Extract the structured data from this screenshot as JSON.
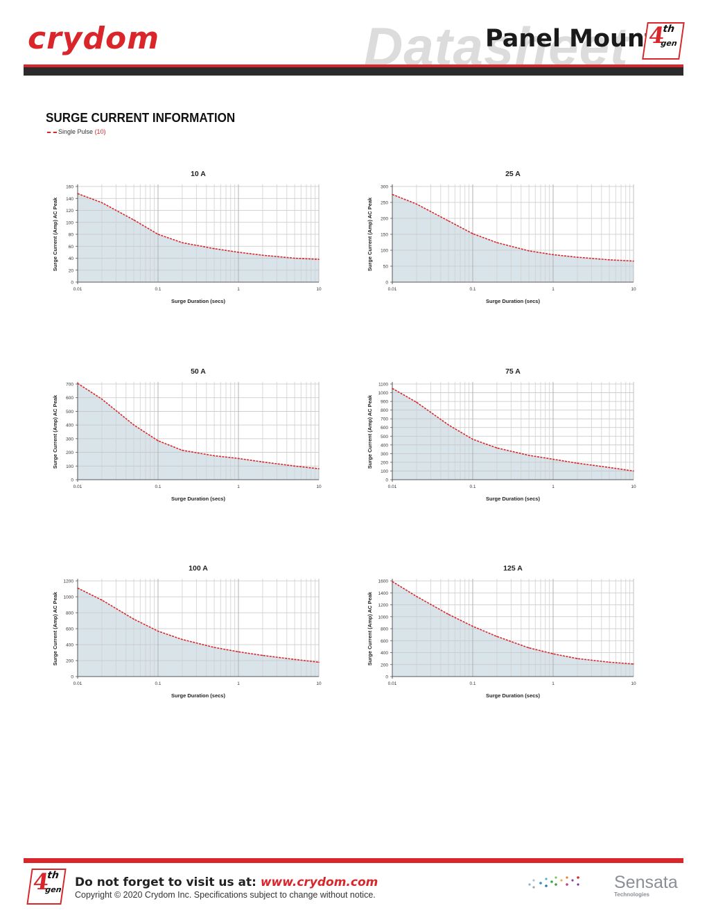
{
  "header": {
    "logo_text": "crydom",
    "watermark_text": "Datasheet",
    "product_title": "Panel Mount",
    "badge_digit": "4",
    "badge_th": "th",
    "badge_gen": "gen",
    "colors": {
      "brand_red": "#d8262b",
      "dark_bar": "#2b2b2b",
      "watermark": "#dcdcdc"
    }
  },
  "section": {
    "title": "SURGE CURRENT INFORMATION",
    "legend_label": "Single Pulse",
    "legend_note": "(10)"
  },
  "chart_data": [
    {
      "type": "area",
      "title": "10 A",
      "xlabel": "Surge Duration (secs)",
      "ylabel": "Surge Current (Amp) AC Peak",
      "xscale": "log",
      "xlim": [
        0.01,
        10
      ],
      "xticks": [
        "0.01",
        "0.1",
        "1",
        "10"
      ],
      "ylim": [
        0,
        160
      ],
      "yticks": [
        0,
        20,
        40,
        60,
        80,
        100,
        120,
        140,
        160
      ],
      "grid": true,
      "series": [
        {
          "name": "Single Pulse",
          "style": "dashed",
          "color": "#d8262b",
          "fill": "#d9e4ea",
          "x": [
            0.01,
            0.02,
            0.05,
            0.1,
            0.2,
            0.5,
            1,
            2,
            5,
            10
          ],
          "y": [
            148,
            133,
            104,
            80,
            66,
            56,
            50,
            45,
            40,
            38
          ]
        }
      ]
    },
    {
      "type": "area",
      "title": "25 A",
      "xlabel": "Surge Duration (secs)",
      "ylabel": "Surge Current (Amp) AC Peak",
      "xscale": "log",
      "xlim": [
        0.01,
        10
      ],
      "xticks": [
        "0.01",
        "0.1",
        "1",
        "10"
      ],
      "ylim": [
        0,
        300
      ],
      "yticks": [
        0,
        50,
        100,
        150,
        200,
        250,
        300
      ],
      "grid": true,
      "series": [
        {
          "name": "Single Pulse",
          "style": "dashed",
          "color": "#d8262b",
          "fill": "#d9e4ea",
          "x": [
            0.01,
            0.02,
            0.05,
            0.1,
            0.2,
            0.5,
            1,
            2,
            5,
            10
          ],
          "y": [
            275,
            245,
            192,
            152,
            124,
            98,
            86,
            78,
            70,
            66
          ]
        }
      ]
    },
    {
      "type": "area",
      "title": "50 A",
      "xlabel": "Surge Duration (secs)",
      "ylabel": "Surge Current (Amp) AC Peak",
      "xscale": "log",
      "xlim": [
        0.01,
        10
      ],
      "xticks": [
        "0.01",
        "0.1",
        "1",
        "10"
      ],
      "ylim": [
        0,
        700
      ],
      "yticks": [
        0,
        100,
        200,
        300,
        400,
        500,
        600,
        700
      ],
      "grid": true,
      "series": [
        {
          "name": "Single Pulse",
          "style": "dashed",
          "color": "#d8262b",
          "fill": "#d9e4ea",
          "x": [
            0.01,
            0.02,
            0.05,
            0.1,
            0.2,
            0.5,
            1,
            2,
            5,
            10
          ],
          "y": [
            705,
            590,
            400,
            285,
            215,
            175,
            155,
            130,
            100,
            80
          ]
        }
      ]
    },
    {
      "type": "area",
      "title": "75 A",
      "xlabel": "Surge Duration (secs)",
      "ylabel": "Surge Current (Amp) AC Peak",
      "xscale": "log",
      "xlim": [
        0.01,
        10
      ],
      "xticks": [
        "0.01",
        "0.1",
        "1",
        "10"
      ],
      "ylim": [
        0,
        1100
      ],
      "yticks": [
        0,
        100,
        200,
        300,
        400,
        500,
        600,
        700,
        800,
        900,
        1000,
        1100
      ],
      "grid": true,
      "series": [
        {
          "name": "Single Pulse",
          "style": "dashed",
          "color": "#d8262b",
          "fill": "#d9e4ea",
          "x": [
            0.01,
            0.02,
            0.05,
            0.1,
            0.2,
            0.5,
            1,
            2,
            5,
            10
          ],
          "y": [
            1050,
            890,
            630,
            465,
            365,
            280,
            235,
            190,
            140,
            100
          ]
        }
      ]
    },
    {
      "type": "area",
      "title": "100 A",
      "xlabel": "Surge Duration (secs)",
      "ylabel": "Surge Current (Amp) AC Peak",
      "xscale": "log",
      "xlim": [
        0.01,
        10
      ],
      "xticks": [
        "0.01",
        "0.1",
        "1",
        "10"
      ],
      "ylim": [
        0,
        1200
      ],
      "yticks": [
        0,
        200,
        400,
        600,
        800,
        1000,
        1200
      ],
      "grid": true,
      "series": [
        {
          "name": "Single Pulse",
          "style": "dashed",
          "color": "#d8262b",
          "fill": "#d9e4ea",
          "x": [
            0.01,
            0.02,
            0.05,
            0.1,
            0.2,
            0.5,
            1,
            2,
            5,
            10
          ],
          "y": [
            1110,
            960,
            720,
            570,
            465,
            365,
            310,
            265,
            215,
            180
          ]
        }
      ]
    },
    {
      "type": "area",
      "title": "125 A",
      "xlabel": "Surge Duration (secs)",
      "ylabel": "Surge Current (Amp) AC Peak",
      "xscale": "log",
      "xlim": [
        0.01,
        10
      ],
      "xticks": [
        "0.01",
        "0.1",
        "1",
        "10"
      ],
      "ylim": [
        0,
        1600
      ],
      "yticks": [
        0,
        200,
        400,
        600,
        800,
        1000,
        1200,
        1400,
        1600
      ],
      "grid": true,
      "series": [
        {
          "name": "Single Pulse",
          "style": "dashed",
          "color": "#d8262b",
          "fill": "#d9e4ea",
          "x": [
            0.01,
            0.02,
            0.05,
            0.1,
            0.2,
            0.5,
            1,
            2,
            5,
            10
          ],
          "y": [
            1590,
            1340,
            1040,
            840,
            670,
            480,
            380,
            300,
            240,
            210
          ]
        }
      ]
    }
  ],
  "footer": {
    "visit_text": "Do not forget to visit us at: ",
    "url": "www.crydom.com",
    "copyright": "Copyright © 2020 Crydom Inc. Specifications subject to change without notice.",
    "brand": "Sensata",
    "brand_sub": "Technologies"
  }
}
